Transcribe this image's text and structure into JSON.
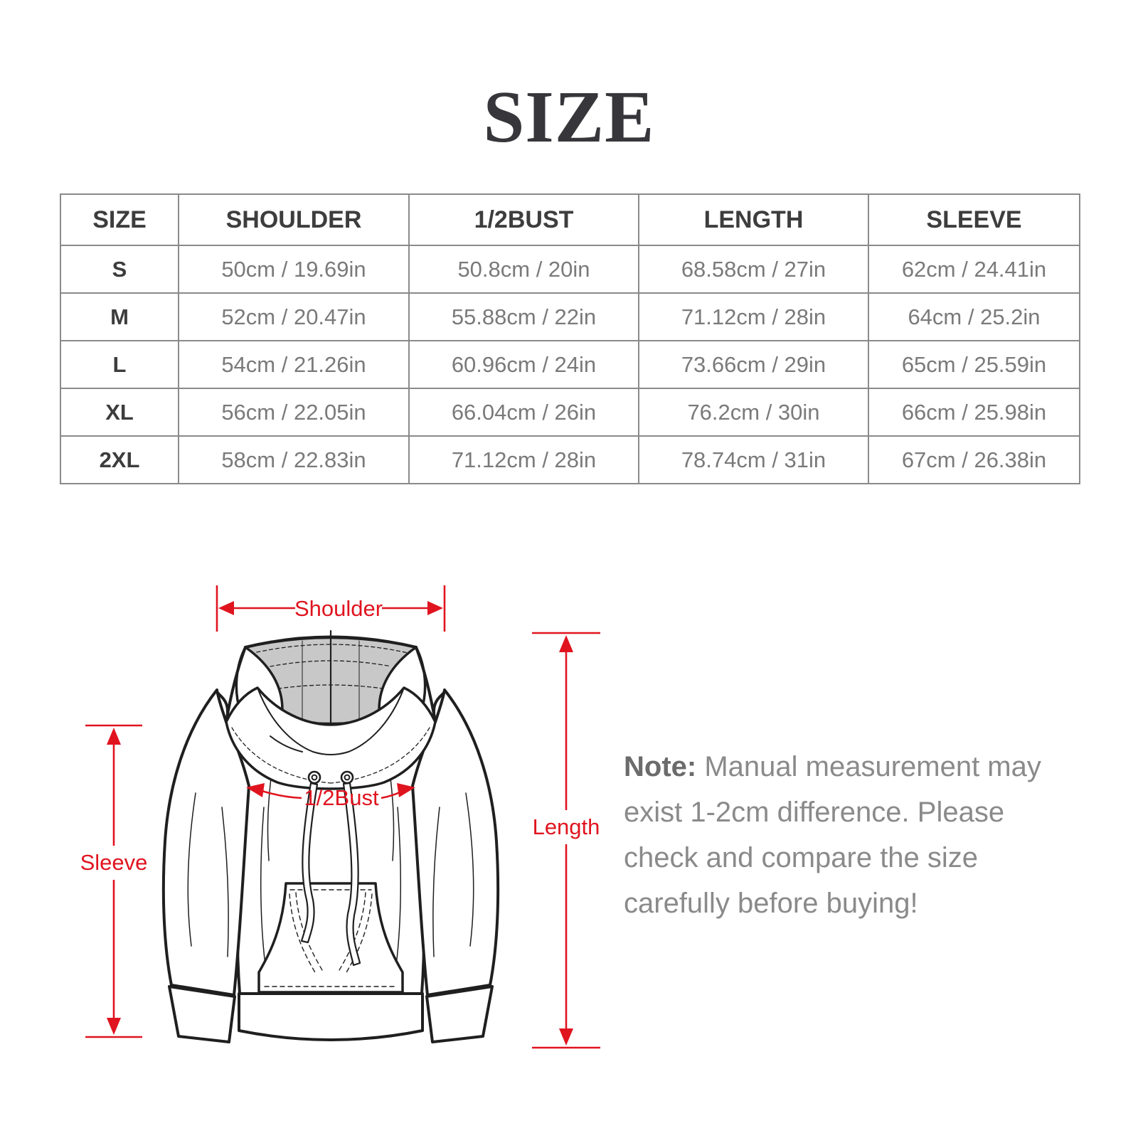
{
  "page": {
    "title": "SIZE",
    "background_color": "#ffffff",
    "accent_color": "#e0141f",
    "line_color": "#1f1f1f",
    "hood_fill_color": "#c8c8c8",
    "border_color": "#8a8a8a"
  },
  "size_chart": {
    "columns": [
      "SIZE",
      "SHOULDER",
      "1/2BUST",
      "LENGTH",
      "SLEEVE"
    ],
    "rows": [
      {
        "size": "S",
        "cells": [
          "50cm / 19.69in",
          "50.8cm / 20in",
          "68.58cm / 27in",
          "62cm / 24.41in"
        ]
      },
      {
        "size": "M",
        "cells": [
          "52cm / 20.47in",
          "55.88cm / 22in",
          "71.12cm / 28in",
          "64cm / 25.2in"
        ]
      },
      {
        "size": "L",
        "cells": [
          "54cm / 21.26in",
          "60.96cm / 24in",
          "73.66cm / 29in",
          "65cm / 25.59in"
        ]
      },
      {
        "size": "XL",
        "cells": [
          "56cm / 22.05in",
          "66.04cm / 26in",
          "76.2cm / 30in",
          "66cm / 25.98in"
        ]
      },
      {
        "size": "2XL",
        "cells": [
          "58cm / 22.83in",
          "71.12cm / 28in",
          "78.74cm / 31in",
          "67cm / 26.38in"
        ]
      }
    ]
  },
  "diagram": {
    "labels": {
      "shoulder": "Shoulder",
      "half_bust": "1/2Bust",
      "length": "Length",
      "sleeve": "Sleeve"
    }
  },
  "note": {
    "label": "Note:",
    "line1": " Manual measurement may",
    "line2": "exist 1-2cm difference. Please",
    "line3": "check and compare the size",
    "line4": "carefully before buying!"
  }
}
